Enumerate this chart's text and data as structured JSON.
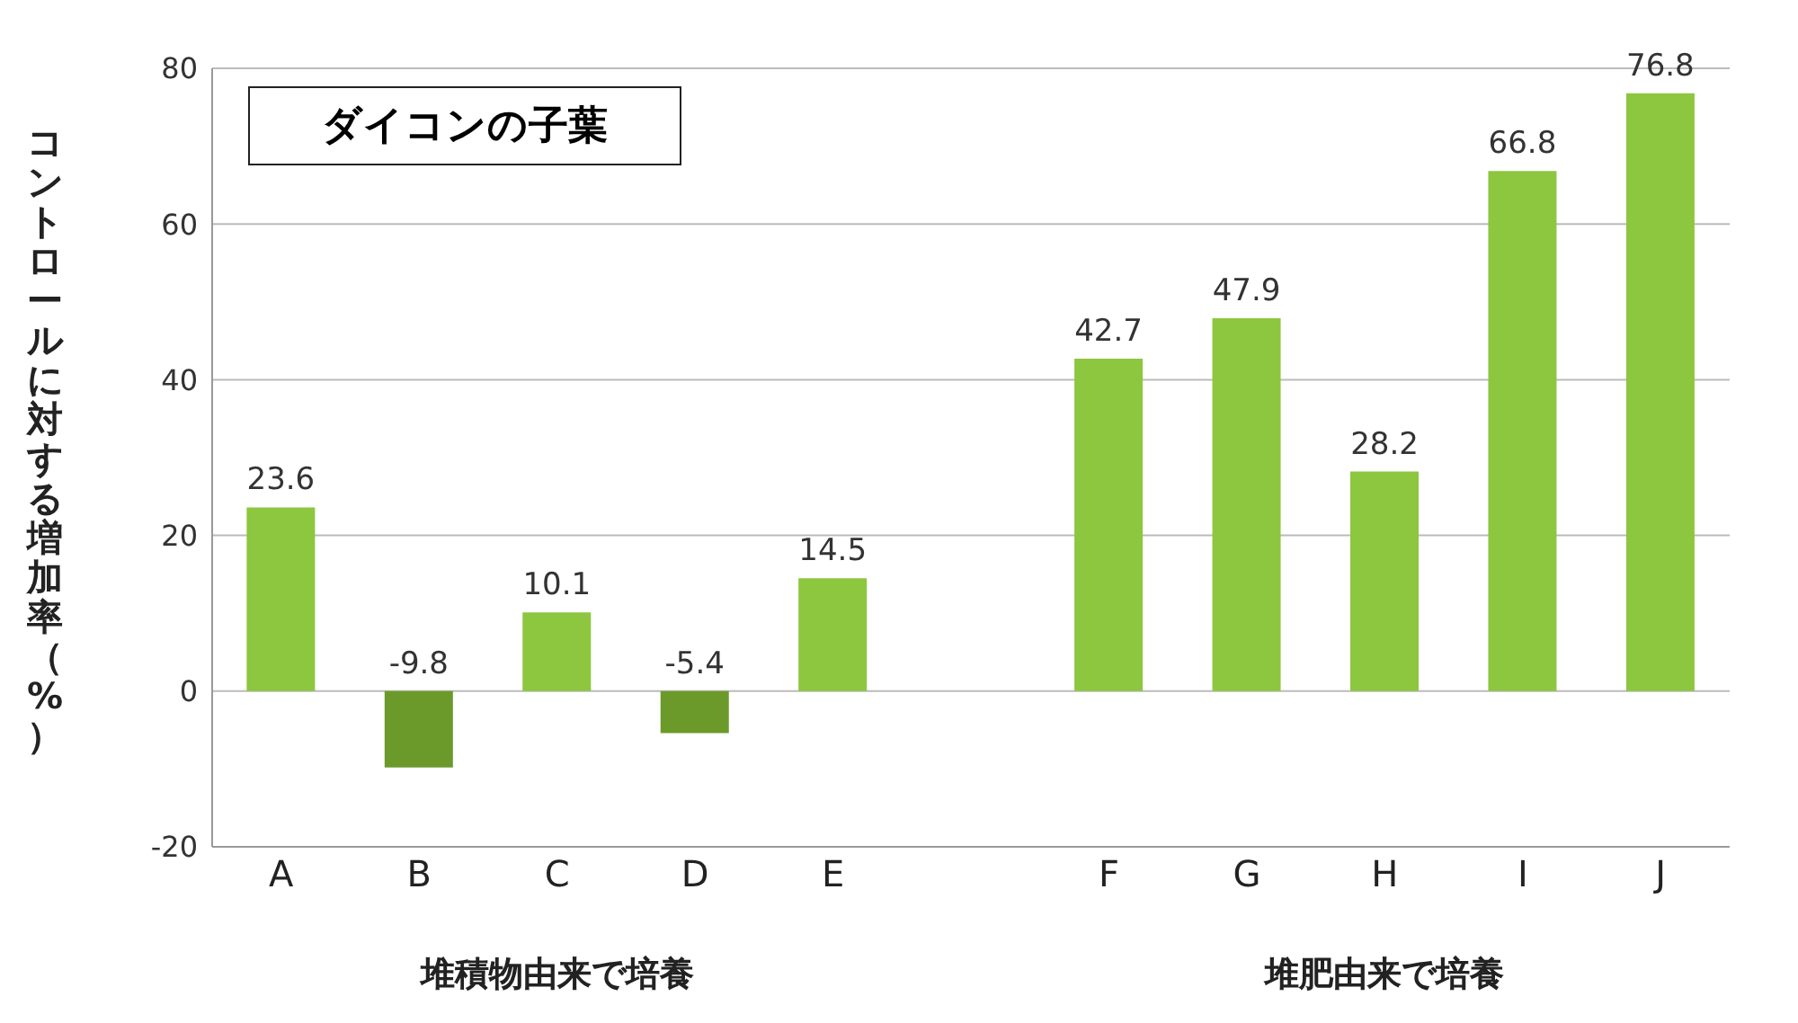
{
  "chart_data": {
    "type": "bar",
    "title": "ダイコンの子葉",
    "ylabel": "コントロールに対する増加率（%）",
    "categories": [
      "A",
      "B",
      "C",
      "D",
      "E",
      null,
      "F",
      "G",
      "H",
      "I",
      "J"
    ],
    "values": [
      23.6,
      -9.8,
      10.1,
      -5.4,
      14.5,
      null,
      42.7,
      47.9,
      28.2,
      66.8,
      76.8
    ],
    "colors": [
      "#8dc63f",
      "#6b9a2a",
      "#8dc63f",
      "#6b9a2a",
      "#8dc63f",
      null,
      "#8dc63f",
      "#8dc63f",
      "#8dc63f",
      "#8dc63f",
      "#8dc63f"
    ],
    "data_labels": true,
    "ylim": [
      -20,
      80
    ],
    "yticks": [
      -20,
      0,
      20,
      40,
      60,
      80
    ],
    "grid": "y",
    "legend": false,
    "annotations": [
      "堆積物由来で培養",
      "堆肥由来で培養"
    ]
  }
}
